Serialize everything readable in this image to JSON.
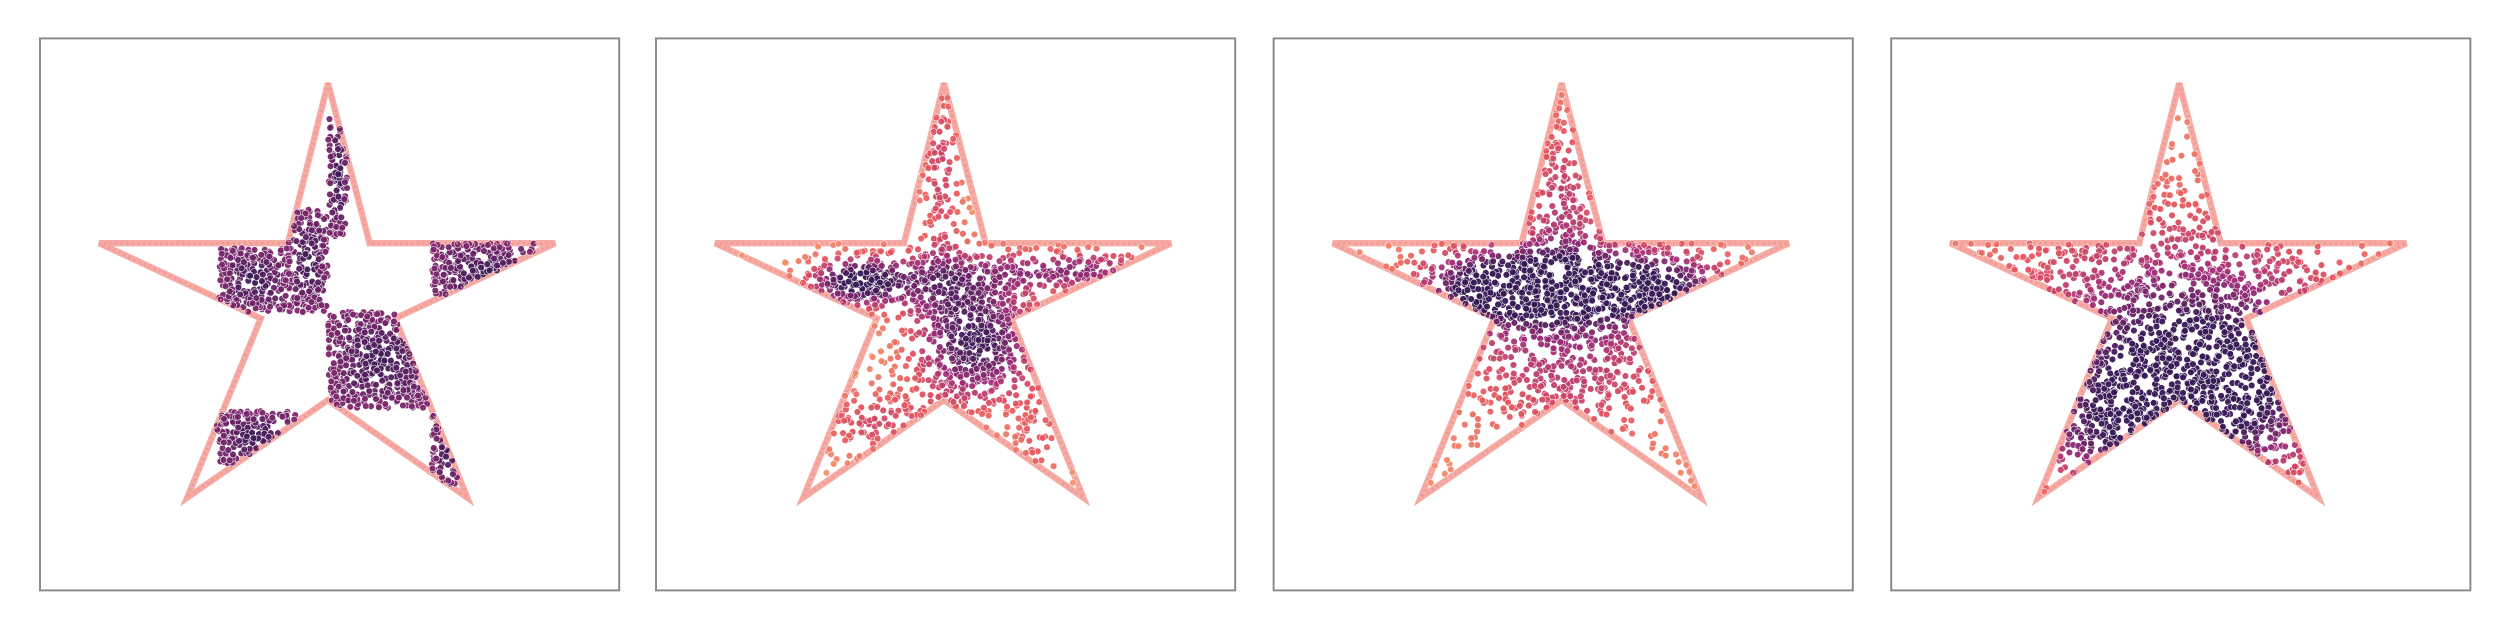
{
  "figure": {
    "panels": [
      {},
      {},
      {},
      {}
    ]
  }
}
